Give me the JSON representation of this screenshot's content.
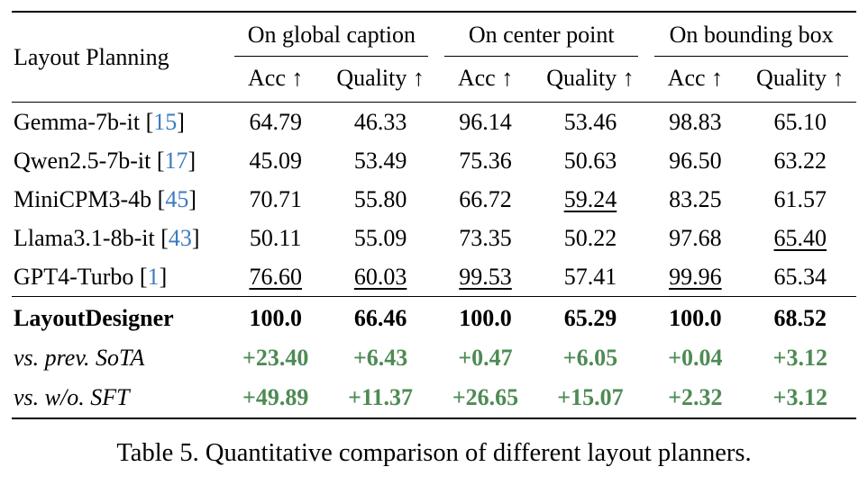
{
  "table": {
    "corner_label": "Layout Planning",
    "groups": [
      {
        "label": "On global caption"
      },
      {
        "label": "On center point"
      },
      {
        "label": "On bounding box"
      }
    ],
    "subheaders": [
      "Acc ↑",
      "Quality ↑",
      "Acc ↑",
      "Quality ↑",
      "Acc ↑",
      "Quality ↑"
    ],
    "citation_brackets": [
      " [",
      "]"
    ],
    "rows": [
      {
        "name": "Gemma-7b-it",
        "cite": "15",
        "values": [
          "64.79",
          "46.33",
          "96.14",
          "53.46",
          "98.83",
          "65.10"
        ],
        "underline": []
      },
      {
        "name": "Qwen2.5-7b-it",
        "cite": "17",
        "values": [
          "45.09",
          "53.49",
          "75.36",
          "50.63",
          "96.50",
          "63.22"
        ],
        "underline": []
      },
      {
        "name": "MiniCPM3-4b",
        "cite": "45",
        "values": [
          "70.71",
          "55.80",
          "66.72",
          "59.24",
          "83.25",
          "61.57"
        ],
        "underline": [
          3
        ]
      },
      {
        "name": "Llama3.1-8b-it",
        "cite": "43",
        "values": [
          "50.11",
          "55.09",
          "73.35",
          "50.22",
          "97.68",
          "65.40"
        ],
        "underline": [
          5
        ]
      },
      {
        "name": "GPT4-Turbo",
        "cite": "1",
        "values": [
          "76.60",
          "60.03",
          "99.53",
          "57.41",
          "99.96",
          "65.34"
        ],
        "underline": [
          0,
          1,
          2,
          4
        ]
      }
    ],
    "summary_rows": [
      {
        "name": "LayoutDesigner",
        "style": "best",
        "values": [
          "100.0",
          "66.46",
          "100.0",
          "65.29",
          "100.0",
          "68.52"
        ]
      },
      {
        "name": "vs. prev. SoTA",
        "style": "delta",
        "values": [
          "+23.40",
          "+6.43",
          "+0.47",
          "+6.05",
          "+0.04",
          "+3.12"
        ]
      },
      {
        "name": "vs. w/o. SFT",
        "style": "delta",
        "values": [
          "+49.89",
          "+11.37",
          "+26.65",
          "+15.07",
          "+2.32",
          "+3.12"
        ]
      }
    ]
  },
  "caption": "Table 5. Quantitative comparison of different layout planners.",
  "colors": {
    "citation_blue": "#3d7bbf",
    "delta_green": "#4e8b54",
    "text_black": "#000000",
    "background": "#ffffff"
  }
}
